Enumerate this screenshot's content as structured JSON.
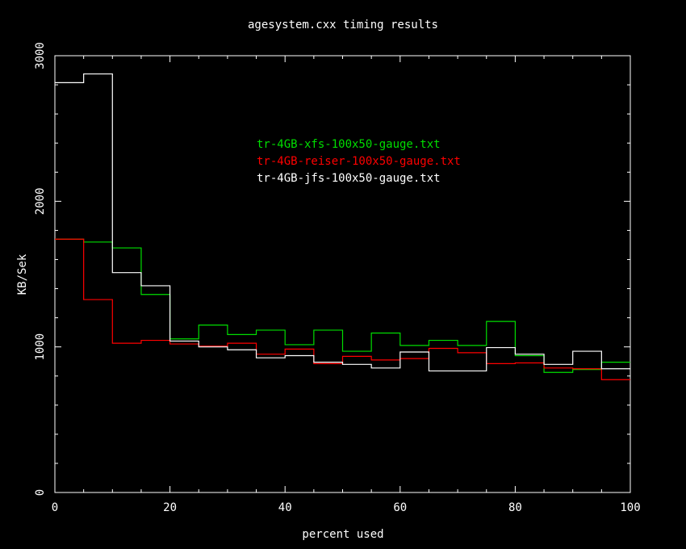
{
  "chart_data": {
    "type": "line",
    "step": true,
    "title": "agesystem.cxx timing results",
    "xlabel": "percent used",
    "ylabel": "KB/Sek",
    "xlim": [
      0,
      100
    ],
    "ylim": [
      0,
      3000
    ],
    "x_ticks": [
      0,
      20,
      40,
      60,
      80,
      100
    ],
    "x_tick_labels": [
      "0",
      "20",
      "40",
      "60",
      "80",
      "100"
    ],
    "y_ticks": [
      0,
      1000,
      2000,
      3000
    ],
    "y_tick_labels": [
      "0",
      "1000",
      "2000",
      "3000"
    ],
    "grid": false,
    "legend_position": "top-center",
    "background": "#000000",
    "axis_color": "#ffffff",
    "bin_edges": [
      0,
      5,
      10,
      15,
      20,
      25,
      30,
      35,
      40,
      45,
      50,
      55,
      60,
      65,
      70,
      75,
      80,
      85,
      90,
      95,
      100
    ],
    "series": [
      {
        "name": "tr-4GB-xfs-100x50-gauge.txt",
        "color": "#00dd00",
        "values": [
          1740,
          1720,
          1680,
          1360,
          1055,
          1150,
          1085,
          1115,
          1015,
          1115,
          970,
          1095,
          1010,
          1045,
          1010,
          1175,
          940,
          825,
          845,
          895
        ]
      },
      {
        "name": "tr-4GB-reiser-100x50-gauge.txt",
        "color": "#ff0000",
        "values": [
          1740,
          1325,
          1025,
          1045,
          1020,
          1005,
          1025,
          950,
          985,
          885,
          935,
          910,
          920,
          990,
          960,
          885,
          890,
          855,
          850,
          775
        ]
      },
      {
        "name": "tr-4GB-jfs-100x50-gauge.txt",
        "color": "#ffffff",
        "values": [
          2815,
          2875,
          1510,
          1420,
          1040,
          1000,
          980,
          925,
          940,
          895,
          880,
          855,
          965,
          835,
          835,
          995,
          950,
          880,
          970,
          850
        ]
      }
    ]
  }
}
